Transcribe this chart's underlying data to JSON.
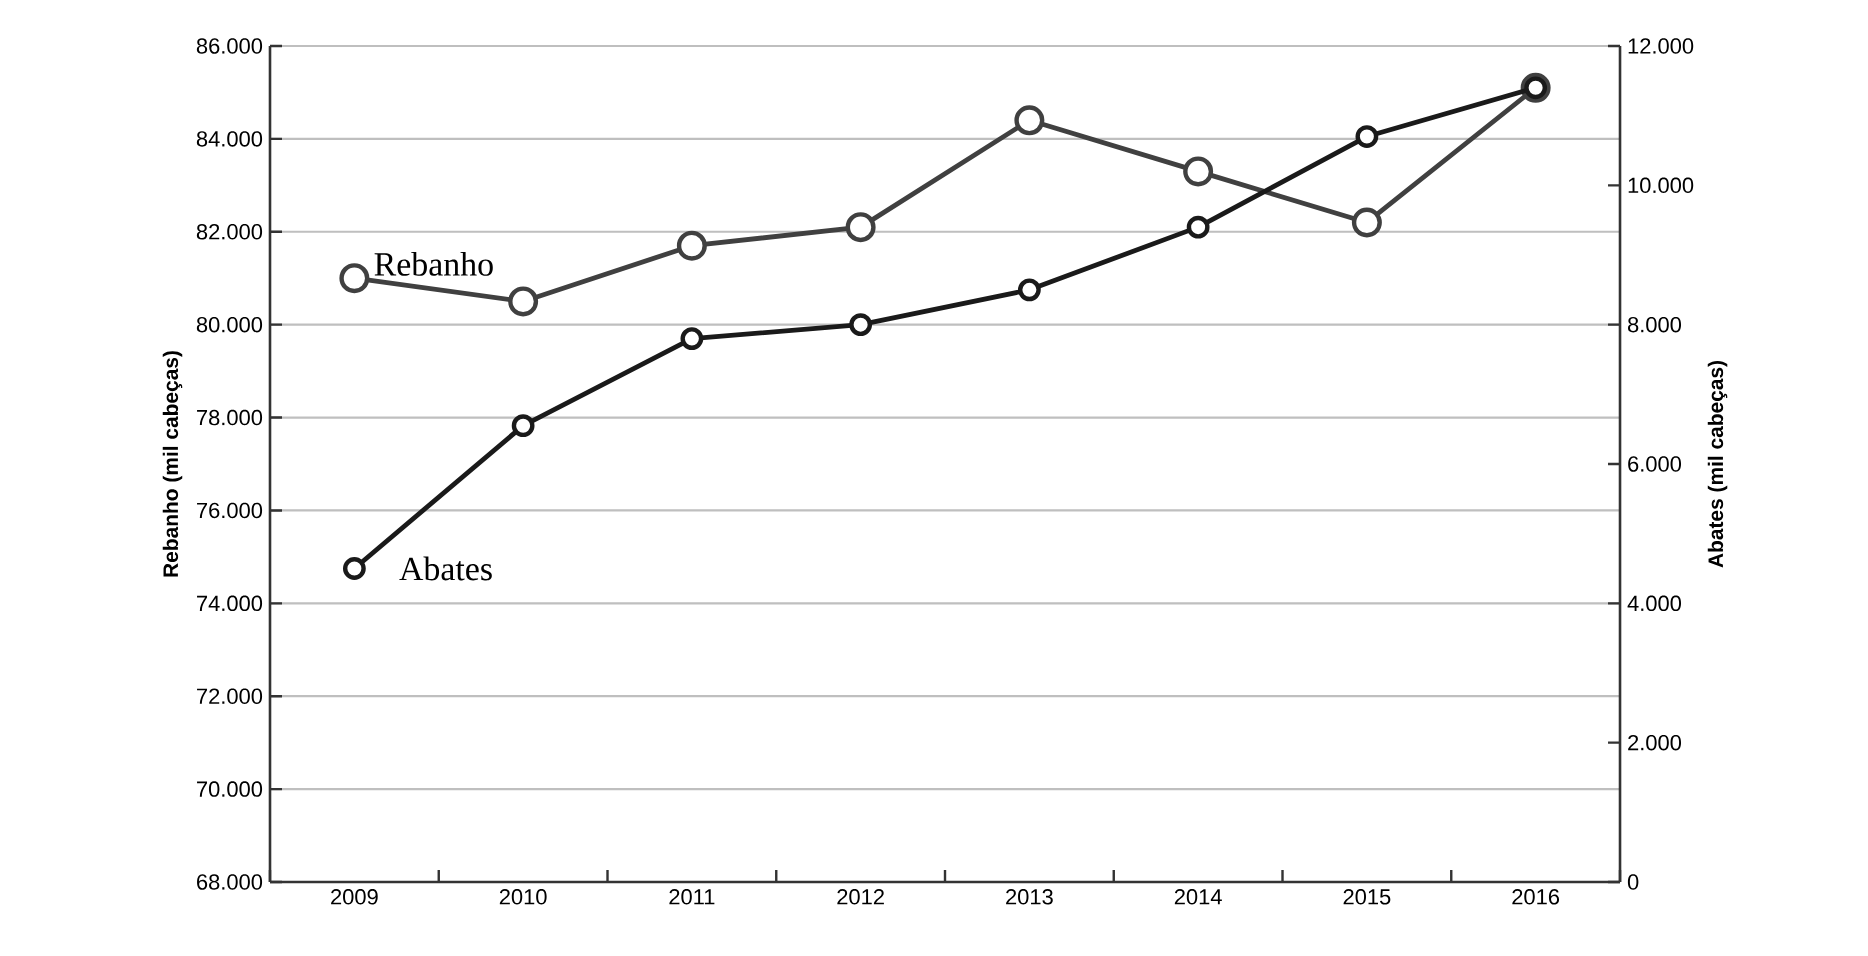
{
  "chart_data": {
    "type": "line",
    "categories": [
      "2009",
      "2010",
      "2011",
      "2012",
      "2013",
      "2014",
      "2015",
      "2016"
    ],
    "series": [
      {
        "name": "Rebanho",
        "color": "#404040",
        "values": [
          81000,
          80500,
          81700,
          82100,
          84400,
          83300,
          82200,
          85100
        ]
      },
      {
        "name": "Abates",
        "color": "#1a1a1a",
        "axis": "y2",
        "values": [
          4500,
          6550,
          7800,
          8000,
          8500,
          9400,
          10700,
          11400
        ]
      }
    ],
    "ylabel": "Rebanho (mil cabeças)",
    "y2label": "Abates (mil cabeças)",
    "ylim": [
      68000,
      86000
    ],
    "yticks": [
      {
        "value": 68000,
        "label": "68.000"
      },
      {
        "value": 70000,
        "label": "70.000"
      },
      {
        "value": 72000,
        "label": "72.000"
      },
      {
        "value": 74000,
        "label": "74.000"
      },
      {
        "value": 76000,
        "label": "76.000"
      },
      {
        "value": 78000,
        "label": "78.000"
      },
      {
        "value": 80000,
        "label": "80.000"
      },
      {
        "value": 82000,
        "label": "82.000"
      },
      {
        "value": 84000,
        "label": "84.000"
      },
      {
        "value": 86000,
        "label": "86.000"
      }
    ],
    "y2lim": [
      0,
      12000
    ],
    "y2ticks": [
      0,
      {
        "value": 2000,
        "label": "2.000"
      },
      {
        "value": 4000,
        "label": "4.000"
      },
      {
        "value": 6000,
        "label": "6.000"
      },
      {
        "value": 8000,
        "label": "8.000"
      },
      {
        "value": 10000,
        "label": "10.000"
      },
      {
        "value": 12000,
        "label": "12.000"
      }
    ],
    "grid": "y",
    "marker": "circle",
    "line_style": "solid"
  }
}
